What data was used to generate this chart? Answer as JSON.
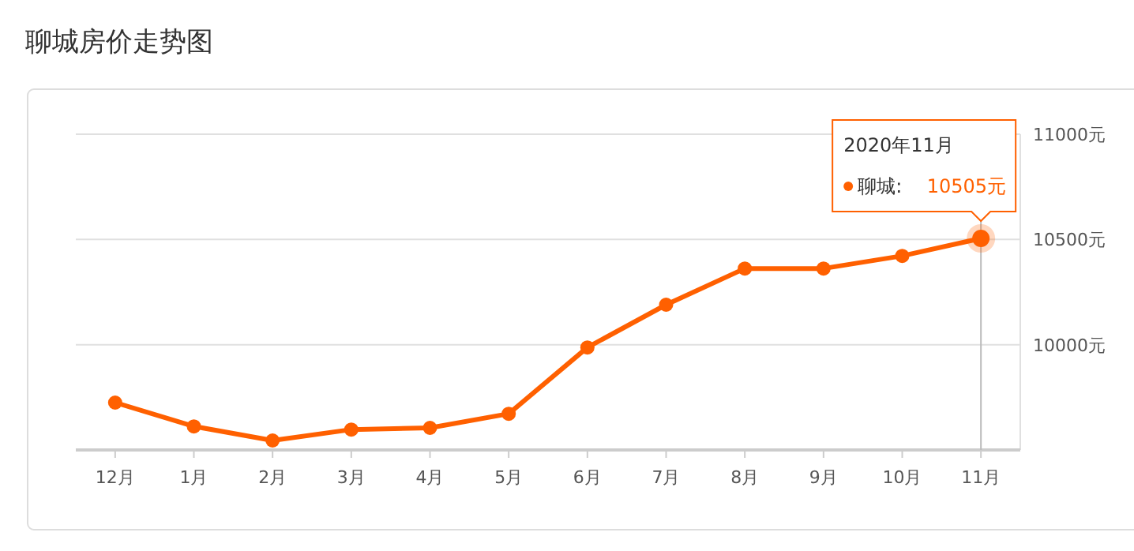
{
  "chart_data": {
    "type": "line",
    "title": "聊城房价走势图",
    "categories": [
      "12月",
      "1月",
      "2月",
      "3月",
      "4月",
      "5月",
      "6月",
      "7月",
      "8月",
      "9月",
      "10月",
      "11月"
    ],
    "series": [
      {
        "name": "聊城:",
        "color": "#ff6000",
        "values": [
          9725,
          9612,
          9545,
          9597,
          9605,
          9672,
          9987,
          10190,
          10362,
          10362,
          10422,
          10505
        ],
        "value_labels": [
          null,
          null,
          null,
          null,
          null,
          null,
          null,
          null,
          null,
          null,
          null,
          "10505元"
        ]
      }
    ],
    "ylim": [
      9500,
      11000
    ],
    "yticks": [
      {
        "value": 10000,
        "label": "10000元"
      },
      {
        "value": 10500,
        "label": "10500元"
      },
      {
        "value": 11000,
        "label": "11000元"
      }
    ],
    "grid": "y",
    "marker": "circle",
    "line_style": "solid",
    "annotations": [
      "2020年11月"
    ],
    "ref_lines": [
      {
        "axis": "x",
        "value": "11月",
        "color": "#bbbbbb"
      }
    ]
  }
}
